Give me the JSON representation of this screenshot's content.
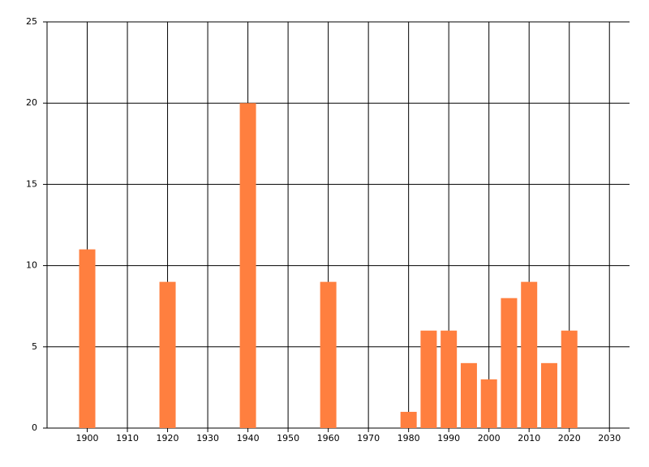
{
  "chart_data": {
    "type": "bar",
    "x": [
      1900,
      1920,
      1940,
      1960,
      1980,
      1985,
      1990,
      1995,
      2000,
      2005,
      2010,
      2015,
      2020
    ],
    "values": [
      11,
      9,
      20,
      9,
      1,
      6,
      6,
      4,
      3,
      8,
      9,
      4,
      6
    ],
    "color": "#ff7f3f",
    "xlim": [
      1890,
      2035
    ],
    "xticks": [
      1900,
      1910,
      1920,
      1930,
      1940,
      1950,
      1960,
      1970,
      1980,
      1990,
      2000,
      2010,
      2020,
      2030
    ],
    "ylim": [
      0,
      25
    ],
    "yticks": [
      0,
      5,
      10,
      15,
      20,
      25
    ],
    "grid": true
  }
}
